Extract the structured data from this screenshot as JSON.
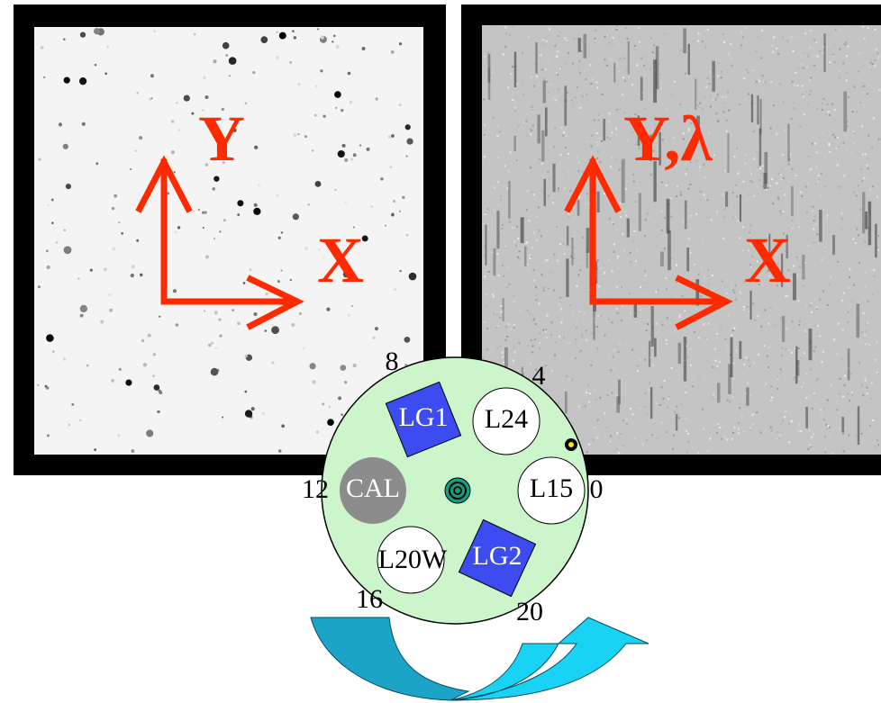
{
  "left_panel": {
    "y_label": "Y",
    "x_label": "X"
  },
  "right_panel": {
    "y_label": "Y,λ",
    "x_label": "X"
  },
  "wheel": {
    "positions": [
      "8",
      "4",
      "0",
      "12",
      "16",
      "20"
    ],
    "slots": [
      "LG1",
      "L24",
      "CAL",
      "L15",
      "L20W",
      "LG2"
    ]
  }
}
